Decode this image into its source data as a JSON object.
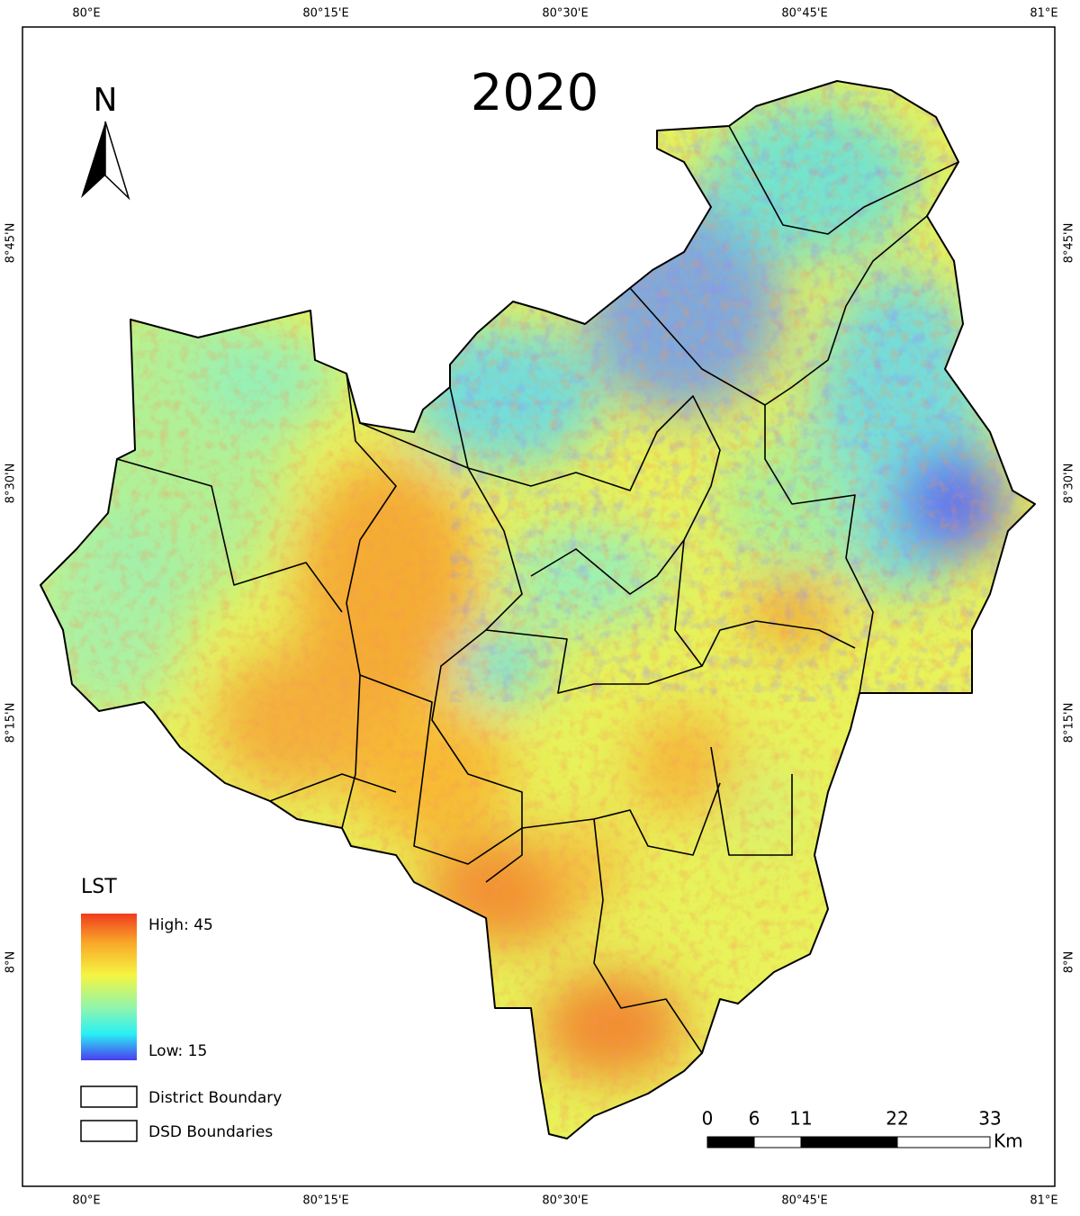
{
  "title": "2020",
  "north": "N",
  "top_labels": [
    "80°E",
    "80°15'E",
    "80°30'E",
    "80°45'E",
    "81°E"
  ],
  "bottom_labels": [
    "80°E",
    "80°15'E",
    "80°30'E",
    "80°45'E",
    "81°E"
  ],
  "left_labels": [
    "8°45'N",
    "8°30'N",
    "8°15'N",
    "8°N"
  ],
  "right_labels": [
    "8°45'N",
    "8°30'N",
    "8°15'N",
    "8°N"
  ],
  "legend": {
    "title": "LST",
    "high": "High: 45",
    "low": "Low: 15",
    "items": [
      "District Boundary",
      "DSD Boundaries"
    ]
  },
  "scale": {
    "labels": [
      "0",
      "6",
      "11",
      "22",
      "33"
    ],
    "unit": "Km"
  }
}
